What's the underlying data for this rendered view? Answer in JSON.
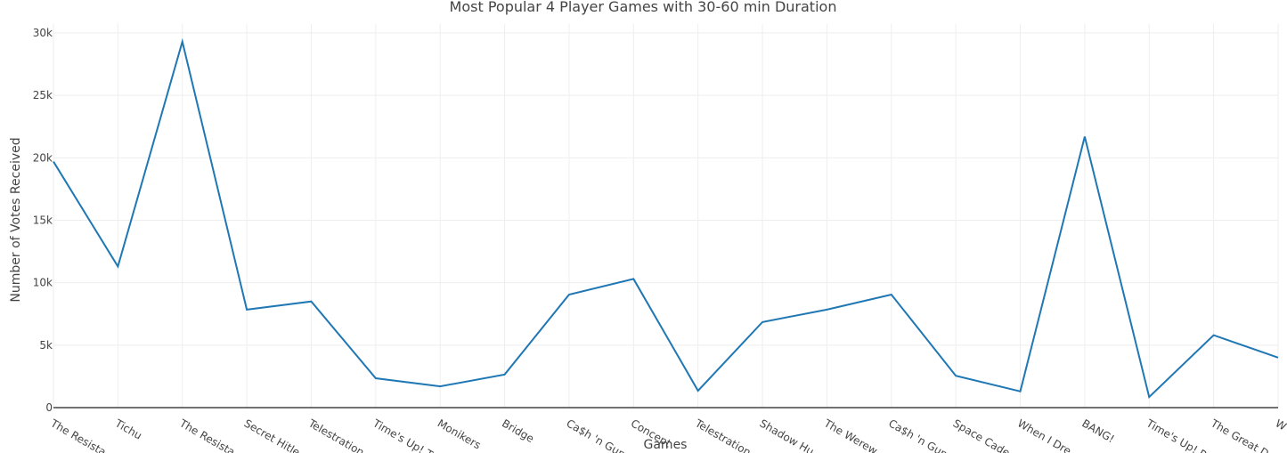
{
  "chart_data": {
    "type": "line",
    "title": "Most Popular 4 Player Games with 30-60 min Duration",
    "x_label": "Games",
    "y_label": "Number of Votes Received",
    "categories": [
      "The Resista",
      "Tichu",
      "The Resista",
      "Secret Hitle",
      "Telestration",
      "Time's Up! T",
      "Monikers",
      "Bridge",
      "Ca$h 'n Gun",
      "Concept",
      "Telestration",
      "Shadow Hu",
      "The Werew",
      "Ca$h 'n Gun",
      "Space Cade",
      "When I Dre",
      "BANG!",
      "Time's Up! P",
      "The Great D",
      "W"
    ],
    "values": [
      19700,
      11300,
      29300,
      7850,
      8500,
      2350,
      1700,
      2650,
      9050,
      10300,
      1350,
      6850,
      7850,
      9050,
      2550,
      1300,
      21700,
      850,
      5800,
      4000
    ],
    "color": "#1f77b4",
    "ylim": [
      0,
      30000
    ],
    "yticks": [
      {
        "value": 0,
        "label": "0"
      },
      {
        "value": 5000,
        "label": "5k"
      },
      {
        "value": 10000,
        "label": "10k"
      },
      {
        "value": 15000,
        "label": "15k"
      },
      {
        "value": 20000,
        "label": "20k"
      },
      {
        "value": 25000,
        "label": "25k"
      },
      {
        "value": 30000,
        "label": "30k"
      }
    ],
    "grid": true
  }
}
